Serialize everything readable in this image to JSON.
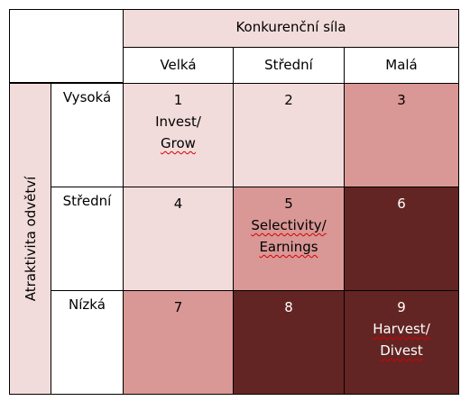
{
  "header": {
    "title": "Konkurenční síla",
    "columns": [
      "Velká",
      "Střední",
      "Malá"
    ]
  },
  "side": {
    "title": "Atraktivita odvětví",
    "rows": [
      "Vysoká",
      "Střední",
      "Nízká"
    ]
  },
  "cells": [
    {
      "number": "1",
      "line1": "Invest/",
      "line2": "Grow",
      "shade": "light"
    },
    {
      "number": "2",
      "line1": "",
      "line2": "",
      "shade": "light"
    },
    {
      "number": "3",
      "line1": "",
      "line2": "",
      "shade": "mid"
    },
    {
      "number": "4",
      "line1": "",
      "line2": "",
      "shade": "light"
    },
    {
      "number": "5",
      "line1": "Selectivity/",
      "line2": "Earnings",
      "shade": "mid"
    },
    {
      "number": "6",
      "line1": "",
      "line2": "",
      "shade": "dark"
    },
    {
      "number": "7",
      "line1": "",
      "line2": "",
      "shade": "mid"
    },
    {
      "number": "8",
      "line1": "",
      "line2": "",
      "shade": "dark"
    },
    {
      "number": "9",
      "line1": "Harvest/",
      "line2": "Divest",
      "shade": "dark"
    }
  ],
  "colors": {
    "light": "#f2dcdb",
    "mid": "#d99795",
    "dark": "#632523"
  }
}
